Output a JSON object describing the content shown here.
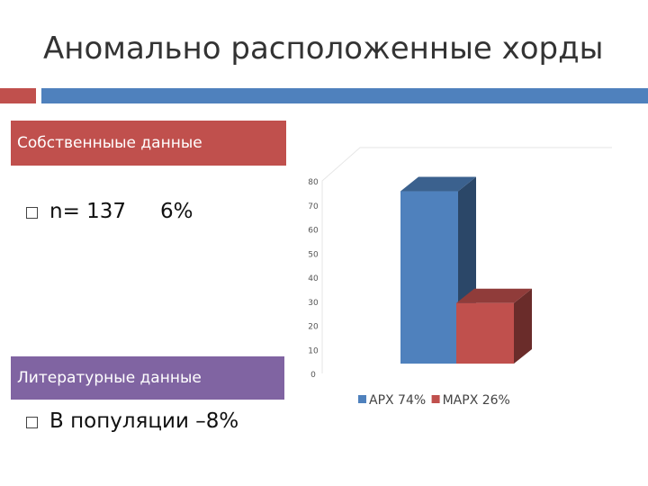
{
  "slide": {
    "title": "Аномально расположенные хорды",
    "accent_red": "#c0504d",
    "accent_blue": "#4f81bd"
  },
  "own_data": {
    "header": "Собственныые данные",
    "header_color": "#c0504d",
    "n_text": "n= 137",
    "pct_text": "6%"
  },
  "literature": {
    "header": "Литературные данные",
    "header_color": "#8064a2",
    "text": "В популяции –8%"
  },
  "chart_data": {
    "type": "bar",
    "title": "",
    "xlabel": "",
    "ylabel": "",
    "ylim": [
      0,
      80
    ],
    "yticks": [
      0,
      10,
      20,
      30,
      40,
      50,
      60,
      70,
      80
    ],
    "grid": false,
    "legend_position": "bottom",
    "series": [
      {
        "name": "АРХ 74%",
        "value": 74,
        "color": "#4f81bd"
      },
      {
        "name": "МАРХ 26%",
        "value": 26,
        "color": "#c0504d"
      }
    ]
  }
}
